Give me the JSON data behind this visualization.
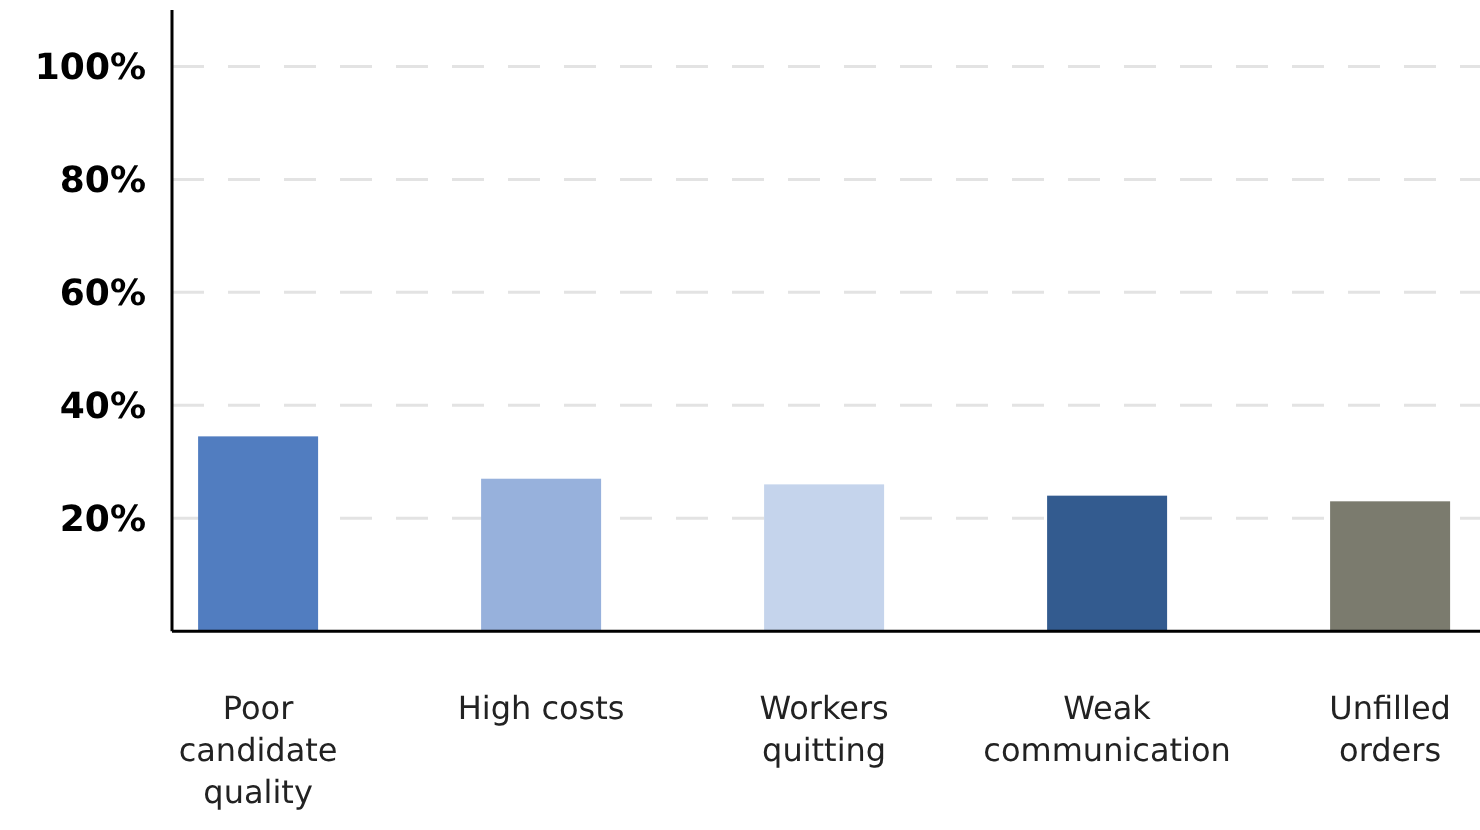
{
  "chart_data": {
    "type": "bar",
    "categories": [
      "Poor candidate quality",
      "High costs",
      "Workers quitting",
      "Weak communication",
      "Unfilled orders"
    ],
    "values": [
      34.5,
      27,
      26,
      24,
      23
    ],
    "colors": [
      "#517dc0",
      "#97b1dc",
      "#c5d4ec",
      "#335b8f",
      "#7b7b6e"
    ],
    "ylim": [
      0,
      110
    ],
    "yticks": [
      {
        "value": 20,
        "label": "20%"
      },
      {
        "value": 40,
        "label": "40%"
      },
      {
        "value": 60,
        "label": "60%"
      },
      {
        "value": 80,
        "label": "80%"
      },
      {
        "value": 100,
        "label": "100%"
      }
    ],
    "grid": "y"
  }
}
